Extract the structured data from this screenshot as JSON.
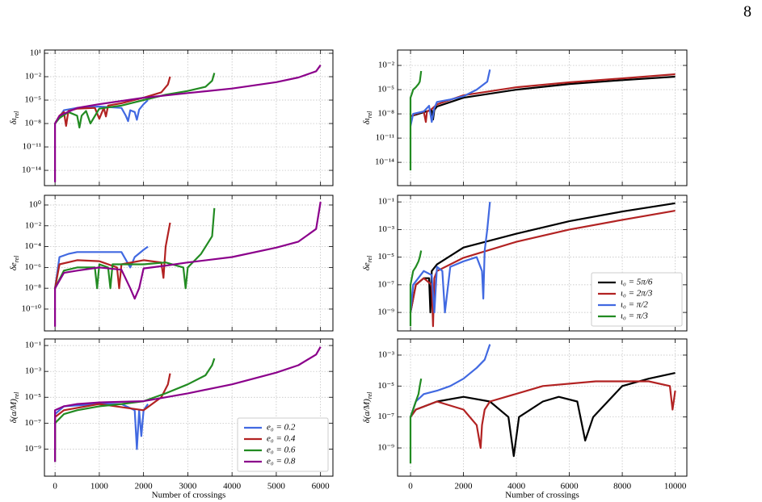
{
  "page_number": "8",
  "chart_data": [
    {
      "type": "line",
      "log_y": true,
      "grid": true,
      "xtick_labels": false,
      "ylabel": "δι",
      "ylabel_sub": "rel",
      "xlim": [
        -240,
        6280
      ],
      "xticks": [
        0,
        1000,
        2000,
        3000,
        4000,
        5000,
        6000
      ],
      "ylim": [
        1.1e-16,
        26
      ],
      "yticks": [
        {
          "value": 1e-14,
          "label": "10⁻¹⁴"
        },
        {
          "value": 1e-11,
          "label": "10⁻¹¹"
        },
        {
          "value": 1e-08,
          "label": "10⁻⁸"
        },
        {
          "value": 1e-05,
          "label": "10⁻⁵"
        },
        {
          "value": 0.01,
          "label": "10⁻²"
        },
        {
          "value": 10,
          "label": "10¹"
        }
      ],
      "series": [
        {
          "color": "#4169e1",
          "x": [
            0,
            200,
            500,
            1000,
            1500,
            1600,
            1650,
            1700,
            1800,
            1850,
            1900,
            2000,
            2100
          ],
          "values": [
            1e-08,
            5e-07,
            1e-06,
            1.5e-06,
            1e-06,
            1e-07,
            2e-08,
            5e-07,
            3e-07,
            3e-08,
            6e-07,
            3e-06,
            1e-05
          ]
        },
        {
          "color": "#b22222",
          "x": [
            0,
            100,
            200,
            250,
            300,
            500,
            900,
            1000,
            1100,
            1150,
            1200,
            1500,
            2000,
            2400,
            2550,
            2600
          ],
          "values": [
            1e-08,
            1e-07,
            3e-07,
            5e-09,
            4e-07,
            8e-07,
            1e-06,
            4e-08,
            1e-06,
            8e-08,
            2e-06,
            4e-06,
            2e-05,
            0.0001,
            0.001,
            0.01
          ]
        },
        {
          "color": "#228b22",
          "x": [
            0,
            100,
            300,
            500,
            550,
            600,
            700,
            800,
            1000,
            1500,
            2000,
            2500,
            3000,
            3400,
            3550,
            3600
          ],
          "values": [
            1e-08,
            5e-08,
            3e-07,
            1e-07,
            3e-09,
            1e-07,
            4e-07,
            1e-08,
            8e-07,
            2e-06,
            1e-05,
            5e-05,
            0.00015,
            0.0005,
            0.003,
            0.03
          ]
        },
        {
          "color": "#8b008b",
          "x": [
            0,
            0,
            100,
            500,
            1000,
            2000,
            3000,
            4000,
            5000,
            5500,
            5900,
            6000
          ],
          "values": [
            3e-16,
            1e-08,
            1e-07,
            1e-06,
            3e-06,
            2e-05,
            8e-05,
            0.0003,
            0.002,
            0.008,
            0.05,
            0.3
          ]
        }
      ]
    },
    {
      "type": "line",
      "log_y": true,
      "grid": true,
      "xtick_labels": false,
      "ylabel": "δι",
      "ylabel_sub": "rel",
      "xlim": [
        -490,
        10440
      ],
      "xticks": [
        0,
        2000,
        4000,
        6000,
        8000,
        10000
      ],
      "ylim": [
        1.3e-17,
        0.8
      ],
      "yticks": [
        {
          "value": 1e-14,
          "label": "10⁻¹⁴"
        },
        {
          "value": 1e-11,
          "label": "10⁻¹¹"
        },
        {
          "value": 1e-08,
          "label": "10⁻⁸"
        },
        {
          "value": 1e-05,
          "label": "10⁻⁵"
        },
        {
          "value": 0.01,
          "label": "10⁻²"
        }
      ],
      "series": [
        {
          "color": "#000000",
          "x": [
            0,
            300,
            600,
            800,
            850,
            900,
            1000,
            2000,
            4000,
            6000,
            8000,
            10000
          ],
          "values": [
            5e-09,
            1e-08,
            2e-08,
            3e-08,
            2e-09,
            3e-08,
            8e-08,
            1e-06,
            1e-05,
            5e-05,
            0.00015,
            0.0004
          ]
        },
        {
          "color": "#b22222",
          "x": [
            0,
            200,
            500,
            580,
            620,
            800,
            1000,
            2000,
            4000,
            6000,
            8000,
            10000
          ],
          "values": [
            5e-09,
            1e-08,
            2e-08,
            1e-09,
            2e-08,
            4e-08,
            1.5e-07,
            2e-06,
            2e-05,
            8e-05,
            0.00025,
            0.0008
          ]
        },
        {
          "color": "#4169e1",
          "x": [
            0,
            100,
            500,
            700,
            800,
            900,
            1000,
            1500,
            2000,
            2500,
            2900,
            3000
          ],
          "values": [
            3e-10,
            1e-08,
            2e-08,
            1e-07,
            1e-09,
            5e-08,
            3e-07,
            6e-07,
            1.5e-06,
            1e-05,
            0.0001,
            0.003
          ]
        },
        {
          "color": "#228b22",
          "x": [
            0,
            0,
            50,
            100,
            200,
            300,
            350,
            400
          ],
          "values": [
            1e-15,
            1e-06,
            3e-06,
            1e-05,
            2e-05,
            5e-05,
            0.0001,
            0.002
          ]
        }
      ]
    },
    {
      "type": "line",
      "log_y": true,
      "grid": true,
      "xtick_labels": false,
      "ylabel": "δe",
      "ylabel_sub": "rel",
      "xlim": [
        -240,
        6280
      ],
      "xticks": [
        0,
        1000,
        2000,
        3000,
        4000,
        5000,
        6000
      ],
      "ylim": [
        8e-13,
        8.5
      ],
      "yticks": [
        {
          "value": 1e-10,
          "label": "10⁻¹⁰"
        },
        {
          "value": 1e-08,
          "label": "10⁻⁸"
        },
        {
          "value": 1e-06,
          "label": "10⁻⁶"
        },
        {
          "value": 0.0001,
          "label": "10⁻⁴"
        },
        {
          "value": 0.01,
          "label": "10⁻²"
        },
        {
          "value": 1,
          "label": "10⁰"
        }
      ],
      "series": [
        {
          "color": "#4169e1",
          "x": [
            0,
            100,
            300,
            500,
            1000,
            1500,
            1700,
            1800,
            2000,
            2100
          ],
          "values": [
            1e-08,
            1e-05,
            2e-05,
            3e-05,
            3e-05,
            3e-05,
            1e-06,
            1e-05,
            5e-05,
            0.0001
          ]
        },
        {
          "color": "#b22222",
          "x": [
            0,
            100,
            500,
            1000,
            1400,
            1450,
            1500,
            2000,
            2400,
            2450,
            2500,
            2600
          ],
          "values": [
            1e-08,
            2e-06,
            5e-06,
            4e-06,
            1e-06,
            1e-08,
            2e-06,
            5e-06,
            3e-06,
            1e-07,
            0.0001,
            0.02
          ]
        },
        {
          "color": "#228b22",
          "x": [
            0,
            200,
            500,
            900,
            950,
            1000,
            1200,
            1250,
            1300,
            1600,
            2000,
            2500,
            2900,
            2950,
            3000,
            3300,
            3550,
            3600
          ],
          "values": [
            1e-08,
            5e-07,
            1e-06,
            1e-06,
            1e-08,
            2e-06,
            1e-06,
            1e-08,
            2e-06,
            2e-06,
            2e-06,
            3e-06,
            1e-06,
            1e-08,
            1e-06,
            2e-05,
            0.001,
            0.5
          ]
        },
        {
          "color": "#8b008b",
          "x": [
            0,
            0,
            200,
            500,
            1000,
            1500,
            1700,
            1800,
            1900,
            2000,
            2500,
            3000,
            4000,
            5000,
            5500,
            5900,
            6000
          ],
          "values": [
            2e-12,
            1e-08,
            3e-07,
            5e-07,
            1e-06,
            6e-07,
            1e-08,
            1e-09,
            1e-08,
            8e-07,
            1.5e-06,
            3e-06,
            1e-05,
            8e-05,
            0.0003,
            0.005,
            2
          ]
        }
      ]
    },
    {
      "type": "line",
      "log_y": true,
      "grid": true,
      "xtick_labels": false,
      "ylabel": "δe",
      "ylabel_sub": "rel",
      "legend": "lower right",
      "xlim": [
        -490,
        10440
      ],
      "xticks": [
        0,
        2000,
        4000,
        6000,
        8000,
        10000
      ],
      "ylim": [
        4.6e-11,
        0.3
      ],
      "yticks": [
        {
          "value": 1e-09,
          "label": "10⁻⁹"
        },
        {
          "value": 1e-07,
          "label": "10⁻⁷"
        },
        {
          "value": 1e-05,
          "label": "10⁻⁵"
        },
        {
          "value": 0.001,
          "label": "10⁻³"
        },
        {
          "value": 0.1,
          "label": "10⁻¹"
        }
      ],
      "series": [
        {
          "name": "ι₀ = 5π/6",
          "color": "#000000",
          "x": [
            0,
            200,
            500,
            700,
            750,
            800,
            1000,
            2000,
            4000,
            6000,
            8000,
            10000
          ],
          "values": [
            1e-09,
            1e-07,
            3e-07,
            3e-07,
            1e-09,
            1e-06,
            3e-06,
            5e-05,
            0.0005,
            0.004,
            0.02,
            0.08
          ]
        },
        {
          "name": "ι₀ = 2π/3",
          "color": "#b22222",
          "x": [
            0,
            200,
            500,
            800,
            850,
            900,
            1000,
            2000,
            4000,
            6000,
            8000,
            10000
          ],
          "values": [
            1e-09,
            1e-07,
            3e-07,
            1e-07,
            1e-10,
            3e-07,
            1e-06,
            9e-06,
            0.00013,
            0.001,
            0.005,
            0.023
          ]
        },
        {
          "name": "ι₀ = π/2",
          "color": "#4169e1",
          "x": [
            0,
            100,
            500,
            800,
            900,
            1000,
            1200,
            1300,
            1500,
            2000,
            2500,
            2700,
            2750,
            2800,
            2900,
            3000
          ],
          "values": [
            1e-09,
            1e-07,
            1e-06,
            5e-07,
            1e-09,
            2e-06,
            1e-06,
            1e-09,
            2e-06,
            5e-06,
            1e-05,
            1e-06,
            1e-08,
            3e-05,
            0.001,
            0.1
          ]
        },
        {
          "name": "ι₀ = π/3",
          "color": "#228b22",
          "x": [
            0,
            0,
            100,
            200,
            300,
            350,
            400
          ],
          "values": [
            1e-10,
            1e-07,
            1e-06,
            2e-06,
            5e-06,
            1e-05,
            3e-05
          ]
        }
      ]
    },
    {
      "type": "line",
      "log_y": true,
      "grid": true,
      "ylabel": "δ(a/M)",
      "ylabel_sub": "rel",
      "xlabel": "Number of crossings",
      "legend": "lower right",
      "xlim": [
        -240,
        6280
      ],
      "xticks": [
        0,
        1000,
        2000,
        3000,
        4000,
        5000,
        6000
      ],
      "ylim": [
        8e-12,
        0.32
      ],
      "yticks": [
        {
          "value": 1e-09,
          "label": "10⁻⁹"
        },
        {
          "value": 1e-07,
          "label": "10⁻⁷"
        },
        {
          "value": 1e-05,
          "label": "10⁻⁵"
        },
        {
          "value": 0.001,
          "label": "10⁻³"
        },
        {
          "value": 0.1,
          "label": "10⁻¹"
        }
      ],
      "series": [
        {
          "name": "e₀ = 0.2",
          "color": "#4169e1",
          "x": [
            0,
            0,
            200,
            1000,
            1500,
            1800,
            1850,
            1900,
            1950,
            2000,
            2100
          ],
          "values": [
            1e-09,
            5e-07,
            2e-06,
            3e-06,
            3e-06,
            1e-06,
            1e-09,
            1e-06,
            1e-08,
            1e-06,
            3e-06
          ]
        },
        {
          "name": "e₀ = 0.4",
          "color": "#b22222",
          "x": [
            0,
            0,
            200,
            1000,
            2000,
            2400,
            2550,
            2600
          ],
          "values": [
            1e-09,
            3e-07,
            1e-06,
            3e-06,
            1e-06,
            1e-05,
            0.0001,
            0.0007
          ]
        },
        {
          "name": "e₀ = 0.6",
          "color": "#228b22",
          "x": [
            0,
            0,
            200,
            500,
            1000,
            1500,
            2000,
            2500,
            3000,
            3400,
            3550,
            3600
          ],
          "values": [
            1e-10,
            1e-07,
            5e-07,
            1e-06,
            2e-06,
            3e-06,
            5e-06,
            2e-05,
            0.0001,
            0.0005,
            0.003,
            0.01
          ]
        },
        {
          "name": "e₀ = 0.8",
          "color": "#8b008b",
          "x": [
            0,
            0,
            200,
            500,
            1000,
            2000,
            3000,
            4000,
            5000,
            5500,
            5900,
            6000
          ],
          "values": [
            1e-10,
            1e-06,
            2e-06,
            3e-06,
            4e-06,
            5e-06,
            2e-05,
            0.0001,
            0.0008,
            0.003,
            0.02,
            0.08
          ]
        }
      ]
    },
    {
      "type": "line",
      "log_y": true,
      "grid": true,
      "ylabel": "δ(a/M)",
      "ylabel_sub": "rel",
      "xlabel": "Number of crossings",
      "xlim": [
        -490,
        10440
      ],
      "xticks": [
        0,
        2000,
        4000,
        6000,
        8000,
        10000
      ],
      "ylim": [
        1.5e-11,
        0.011
      ],
      "yticks": [
        {
          "value": 1e-09,
          "label": "10⁻⁹"
        },
        {
          "value": 1e-07,
          "label": "10⁻⁷"
        },
        {
          "value": 1e-05,
          "label": "10⁻⁵"
        },
        {
          "value": 0.001,
          "label": "10⁻³"
        }
      ],
      "series": [
        {
          "color": "#000000",
          "x": [
            0,
            200,
            1000,
            2000,
            3000,
            3700,
            3900,
            4100,
            5000,
            5600,
            6300,
            6600,
            6900,
            8000,
            9000,
            10000
          ],
          "values": [
            1e-07,
            3e-07,
            1e-06,
            2e-06,
            1e-06,
            1e-07,
            3e-10,
            1e-07,
            1e-06,
            2e-06,
            1e-06,
            3e-09,
            1e-07,
            1e-05,
            3e-05,
            7e-05
          ]
        },
        {
          "color": "#b22222",
          "x": [
            0,
            200,
            1000,
            2000,
            2500,
            2650,
            2700,
            2800,
            3000,
            5000,
            7000,
            9000,
            9800,
            9900,
            10000
          ],
          "values": [
            1e-07,
            3e-07,
            1e-06,
            3e-07,
            3e-08,
            1e-09,
            3e-08,
            3e-07,
            1e-06,
            1e-05,
            2e-05,
            2e-05,
            1e-05,
            3e-07,
            5e-06
          ]
        },
        {
          "color": "#4169e1",
          "x": [
            0,
            200,
            500,
            1000,
            1500,
            2000,
            2500,
            2800,
            3000
          ],
          "values": [
            1e-07,
            1e-06,
            3e-06,
            5e-06,
            1e-05,
            3e-05,
            0.00015,
            0.0005,
            0.005
          ]
        },
        {
          "color": "#228b22",
          "x": [
            0,
            0,
            100,
            200,
            300,
            350,
            400
          ],
          "values": [
            1e-10,
            1e-07,
            3e-07,
            1e-06,
            3e-06,
            1e-05,
            3e-05
          ]
        }
      ]
    }
  ]
}
